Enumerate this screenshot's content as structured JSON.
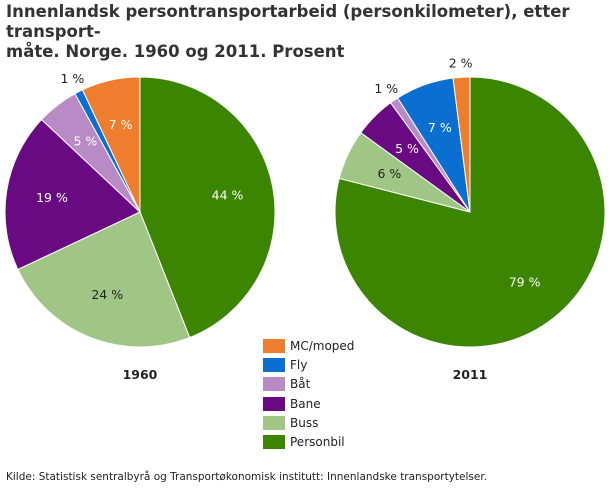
{
  "title": "Innenlandsk persontransportarbeid (personkilometer), etter transport-måte. Norge. 1960 og 2011. Prosent",
  "title_lines": [
    "Innenlandsk persontransportarbeid (personkilometer), etter transport-",
    "måte. Norge. 1960 og 2011. Prosent"
  ],
  "source": "Kilde: Statistisk sentralbyrå og Transportøkonomisk institutt: Innenlandske transportytelser.",
  "chart_data": [
    {
      "type": "pie",
      "title": "1960",
      "categories": [
        "Personbil",
        "Buss",
        "Bane",
        "Båt",
        "Fly",
        "MC/moped"
      ],
      "values": [
        44,
        24,
        19,
        5,
        1,
        7
      ],
      "labels": [
        "44 %",
        "24 %",
        "19 %",
        "5 %",
        "1 %",
        "7 %"
      ],
      "start": "12 o'clock, clockwise"
    },
    {
      "type": "pie",
      "title": "2011",
      "categories": [
        "Personbil",
        "Buss",
        "Bane",
        "Båt",
        "Fly",
        "MC/moped"
      ],
      "values": [
        79,
        6,
        5,
        1,
        7,
        2
      ],
      "labels": [
        "79 %",
        "6 %",
        "5 %",
        "1 %",
        "7 %",
        "2 %"
      ],
      "start": "12 o'clock, clockwise"
    }
  ],
  "legend": {
    "placement": "bottom-center",
    "items": [
      {
        "label": "MC/moped",
        "color": "#ee7d2e"
      },
      {
        "label": "Fly",
        "color": "#0a6fd1"
      },
      {
        "label": "Båt",
        "color": "#b98bc6"
      },
      {
        "label": "Bane",
        "color": "#6a0a82"
      },
      {
        "label": "Buss",
        "color": "#a0c686"
      },
      {
        "label": "Personbil",
        "color": "#3b8500"
      }
    ]
  },
  "colors": {
    "Personbil": "#3b8500",
    "Buss": "#a0c686",
    "Bane": "#6a0a82",
    "Båt": "#b98bc6",
    "Fly": "#0a6fd1",
    "MC/moped": "#ee7d2e"
  }
}
